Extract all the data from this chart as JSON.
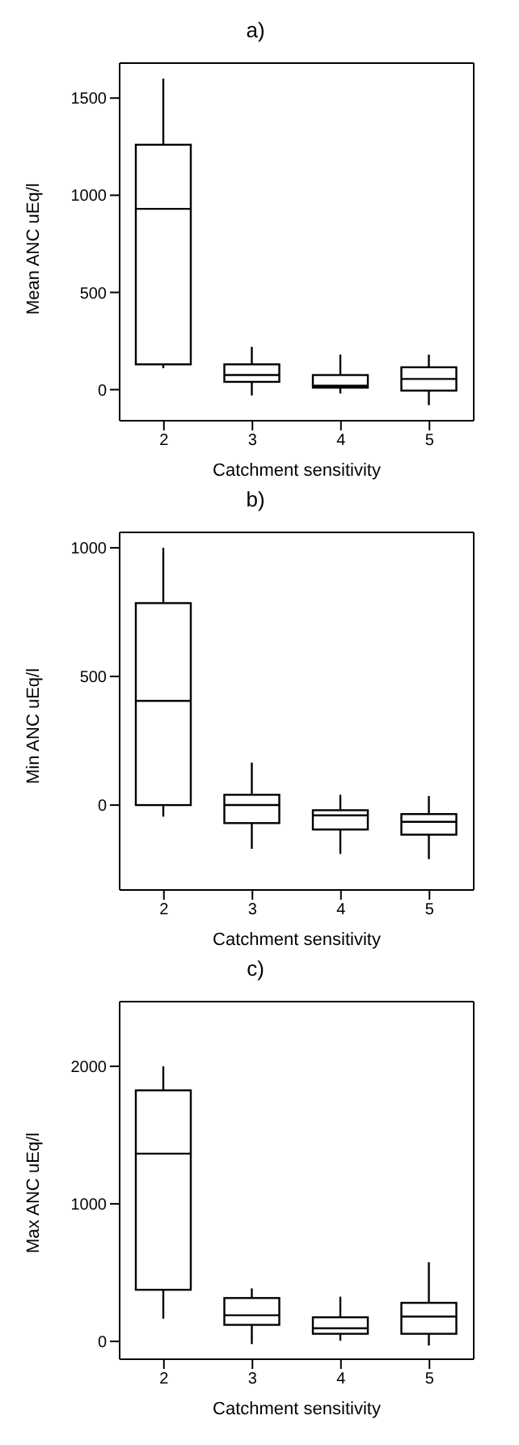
{
  "chart_data": [
    {
      "type": "box",
      "title": "a)",
      "xlabel": "Catchment sensitivity",
      "ylabel": "Mean ANC uEq/l",
      "categories": [
        "2",
        "3",
        "4",
        "5"
      ],
      "ylim": [
        -160,
        1680
      ],
      "yticks": [
        0,
        500,
        1000,
        1500
      ],
      "boxes": [
        {
          "low": 110,
          "q1": 130,
          "median": 930,
          "q3": 1260,
          "high": 1600
        },
        {
          "low": -30,
          "q1": 40,
          "median": 75,
          "q3": 130,
          "high": 220
        },
        {
          "low": -20,
          "q1": 10,
          "median": 20,
          "q3": 75,
          "high": 180
        },
        {
          "low": -80,
          "q1": -5,
          "median": 55,
          "q3": 115,
          "high": 180
        }
      ]
    },
    {
      "type": "box",
      "title": "b)",
      "xlabel": "Catchment sensitivity",
      "ylabel": "Min ANC uEq/l",
      "categories": [
        "2",
        "3",
        "4",
        "5"
      ],
      "ylim": [
        -330,
        1060
      ],
      "yticks": [
        0,
        500,
        1000
      ],
      "boxes": [
        {
          "low": -45,
          "q1": 0,
          "median": 405,
          "q3": 785,
          "high": 1000
        },
        {
          "low": -170,
          "q1": -70,
          "median": 0,
          "q3": 40,
          "high": 165
        },
        {
          "low": -190,
          "q1": -95,
          "median": -40,
          "q3": -20,
          "high": 40
        },
        {
          "low": -210,
          "q1": -115,
          "median": -65,
          "q3": -35,
          "high": 35
        }
      ]
    },
    {
      "type": "box",
      "title": "c)",
      "xlabel": "Catchment sensitivity",
      "ylabel": "Max ANC uEq/l",
      "categories": [
        "2",
        "3",
        "4",
        "5"
      ],
      "ylim": [
        -130,
        2470
      ],
      "yticks": [
        0,
        1000,
        2000
      ],
      "boxes": [
        {
          "low": 165,
          "q1": 375,
          "median": 1365,
          "q3": 1825,
          "high": 2000
        },
        {
          "low": -20,
          "q1": 120,
          "median": 190,
          "q3": 315,
          "high": 385
        },
        {
          "low": 5,
          "q1": 55,
          "median": 95,
          "q3": 175,
          "high": 325
        },
        {
          "low": -30,
          "q1": 55,
          "median": 180,
          "q3": 280,
          "high": 575
        }
      ]
    }
  ]
}
